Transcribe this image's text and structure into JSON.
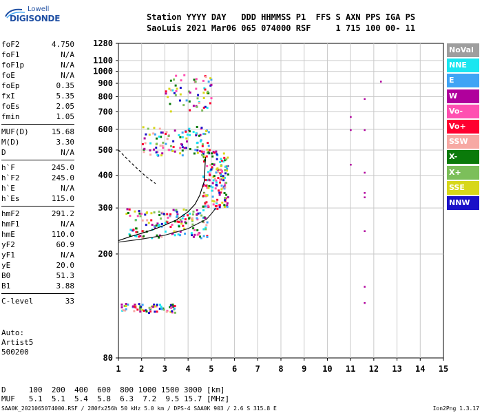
{
  "logo": {
    "line1": "Lowell",
    "line2": "DIGISONDE"
  },
  "header": {
    "line1": "Station YYYY DAY   DDD HHMMSS P1  FFS S AXN PPS IGA PS",
    "line2": "SaoLuis 2021 Mar06 065 074000 RSF     1 715 100 00- 11"
  },
  "params": {
    "group1": [
      {
        "label": "foF2",
        "value": "4.750"
      },
      {
        "label": "foF1",
        "value": "N/A"
      },
      {
        "label": "foF1p",
        "value": "N/A"
      },
      {
        "label": "foE",
        "value": "N/A"
      },
      {
        "label": "foEp",
        "value": "0.35"
      },
      {
        "label": "fxI",
        "value": "5.35"
      },
      {
        "label": "foEs",
        "value": "2.05"
      },
      {
        "label": "fmin",
        "value": "1.05"
      }
    ],
    "group2": [
      {
        "label": "MUF(D)",
        "value": "15.68"
      },
      {
        "label": "M(D)",
        "value": "3.30"
      },
      {
        "label": "D",
        "value": "N/A"
      }
    ],
    "group3": [
      {
        "label": "h`F",
        "value": "245.0"
      },
      {
        "label": "h`F2",
        "value": "245.0"
      },
      {
        "label": "h`E",
        "value": "N/A"
      },
      {
        "label": "h`Es",
        "value": "115.0"
      }
    ],
    "group4": [
      {
        "label": "hmF2",
        "value": "291.2"
      },
      {
        "label": "hmF1",
        "value": "N/A"
      },
      {
        "label": "hmE",
        "value": "110.0"
      },
      {
        "label": "yF2",
        "value": "60.9"
      },
      {
        "label": "yF1",
        "value": "N/A"
      },
      {
        "label": "yE",
        "value": "20.0"
      },
      {
        "label": "B0",
        "value": "51.3"
      },
      {
        "label": "B1",
        "value": "3.88"
      }
    ],
    "group5": [
      {
        "label": "C-level",
        "value": "33"
      }
    ]
  },
  "tail": {
    "auto": "Auto:",
    "artist": "Artist5",
    "version": "500200"
  },
  "legend": [
    {
      "label": "NoVal",
      "color": "#9e9e9e"
    },
    {
      "label": "NNE",
      "color": "#19e6f0"
    },
    {
      "label": "E",
      "color": "#3fa4f5"
    },
    {
      "label": "W",
      "color": "#b0009c"
    },
    {
      "label": "Vo-",
      "color": "#ff4fb1"
    },
    {
      "label": "Vo+",
      "color": "#ff0030"
    },
    {
      "label": "SSW",
      "color": "#f7a9a4"
    },
    {
      "label": "X-",
      "color": "#0a7a0a"
    },
    {
      "label": "X+",
      "color": "#7cbf5a"
    },
    {
      "label": "SSE",
      "color": "#d7d71a"
    },
    {
      "label": "NNW",
      "color": "#1a10c8"
    }
  ],
  "muf_table": {
    "line1": "D     100  200  400  600  800 1000 1500 3000 [km]",
    "line2": "MUF   5.1  5.1  5.4  5.8  6.3  7.2  9.5 15.7 [MHz]"
  },
  "footer": {
    "left": "SAA0K_2021065074000.RSF / 280fx256h 50 kHz 5.0 km / DPS-4 SAA0K 903 / 2.6 S 315.8 E",
    "right": "Ion2Png 1.3.17"
  },
  "chart_data": {
    "type": "scatter",
    "title": "",
    "xlabel": "",
    "ylabel": "",
    "xlim": [
      1,
      15
    ],
    "ylim": [
      80,
      1280
    ],
    "x_ticks": [
      1,
      2,
      3,
      4,
      5,
      6,
      7,
      8,
      9,
      10,
      11,
      12,
      13,
      14,
      15
    ],
    "y_ticks": [
      80,
      200,
      300,
      400,
      500,
      600,
      700,
      800,
      900,
      1000,
      1100,
      1280
    ],
    "y_scale": "log",
    "grid": true,
    "legend_position": "right",
    "traces": [
      {
        "name": "O-trace profile curve",
        "x": [
          1.0,
          1.5,
          2.0,
          2.5,
          3.0,
          3.5,
          4.0,
          4.3,
          4.5,
          4.7,
          4.75
        ],
        "y": [
          225,
          233,
          240,
          248,
          258,
          270,
          290,
          310,
          335,
          380,
          470
        ]
      },
      {
        "name": "X-trace curve",
        "x": [
          1.0,
          2.0,
          3.0,
          4.0,
          4.8,
          5.0,
          5.2
        ],
        "y": [
          222,
          228,
          236,
          250,
          272,
          285,
          300
        ]
      },
      {
        "name": "dashed curve",
        "x": [
          1.0,
          1.4,
          1.8,
          2.2,
          2.6
        ],
        "y": [
          500,
          460,
          425,
          395,
          372
        ]
      }
    ],
    "echo_regions": [
      {
        "name": "Es echoes",
        "x_range": [
          1.1,
          3.5
        ],
        "y_range": [
          120,
          130
        ]
      },
      {
        "name": "F-layer O-trace",
        "x_range": [
          1.3,
          4.8
        ],
        "y_range": [
          232,
          300
        ]
      },
      {
        "name": "F-layer cusp",
        "x_range": [
          4.6,
          5.7
        ],
        "y_range": [
          300,
          500
        ]
      },
      {
        "name": "second hop",
        "x_range": [
          2.0,
          4.9
        ],
        "y_range": [
          480,
          620
        ]
      },
      {
        "name": "third hop",
        "x_range": [
          3.0,
          5.0
        ],
        "y_range": [
          700,
          990
        ]
      }
    ],
    "isolated_points": [
      {
        "x": 12.3,
        "y": 915
      },
      {
        "x": 11.6,
        "y": 785
      },
      {
        "x": 11.0,
        "y": 670
      },
      {
        "x": 11.0,
        "y": 597
      },
      {
        "x": 11.6,
        "y": 597
      },
      {
        "x": 11.0,
        "y": 440
      },
      {
        "x": 11.6,
        "y": 410
      },
      {
        "x": 11.6,
        "y": 343
      },
      {
        "x": 11.6,
        "y": 330
      },
      {
        "x": 11.6,
        "y": 245
      },
      {
        "x": 11.6,
        "y": 150
      },
      {
        "x": 11.6,
        "y": 130
      }
    ]
  }
}
